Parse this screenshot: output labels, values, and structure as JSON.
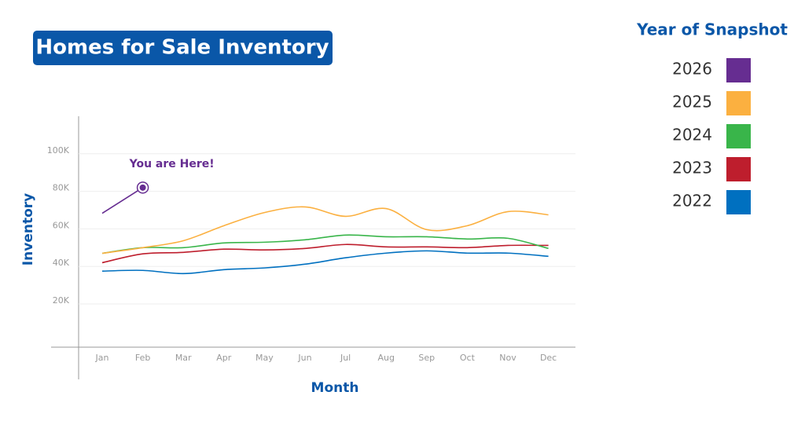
{
  "chart_data": {
    "type": "line",
    "title": "Homes for Sale Inventory",
    "x_label": "Month",
    "y_label": "Inventory",
    "legend_title": "Year of Snapshot",
    "annotation": "You are Here!",
    "categories": [
      "Jan",
      "Feb",
      "Mar",
      "Apr",
      "May",
      "Jun",
      "Jul",
      "Aug",
      "Sep",
      "Oct",
      "Nov",
      "Dec"
    ],
    "ylim": [
      -3000,
      120000
    ],
    "yticks": [
      {
        "value": 20000,
        "label": "20K"
      },
      {
        "value": 40000,
        "label": "40K"
      },
      {
        "value": 60000,
        "label": "60K"
      },
      {
        "value": 80000,
        "label": "80K"
      },
      {
        "value": 100000,
        "label": "100K"
      }
    ],
    "grid": true,
    "legend": "right",
    "series": [
      {
        "name": "2026",
        "color": "#662d91",
        "values": [
          68300,
          82000,
          null,
          null,
          null,
          null,
          null,
          null,
          null,
          null,
          null,
          null
        ]
      },
      {
        "name": "2025",
        "color": "#fbb040",
        "values": [
          47000,
          50000,
          53700,
          61700,
          68700,
          71700,
          66700,
          70800,
          59600,
          61700,
          69200,
          67500
        ]
      },
      {
        "name": "2024",
        "color": "#39b54a",
        "values": [
          47000,
          50000,
          50000,
          52500,
          52900,
          54200,
          56700,
          55800,
          55800,
          54600,
          55000,
          49600
        ]
      },
      {
        "name": "2023",
        "color": "#be1e2d",
        "values": [
          42000,
          46700,
          47500,
          49200,
          48800,
          49600,
          51700,
          50400,
          50400,
          50000,
          51200,
          51200
        ]
      },
      {
        "name": "2022",
        "color": "#0070c0",
        "values": [
          37500,
          37900,
          36200,
          38300,
          39200,
          41200,
          44600,
          47100,
          48300,
          47100,
          47100,
          45400
        ]
      }
    ]
  }
}
